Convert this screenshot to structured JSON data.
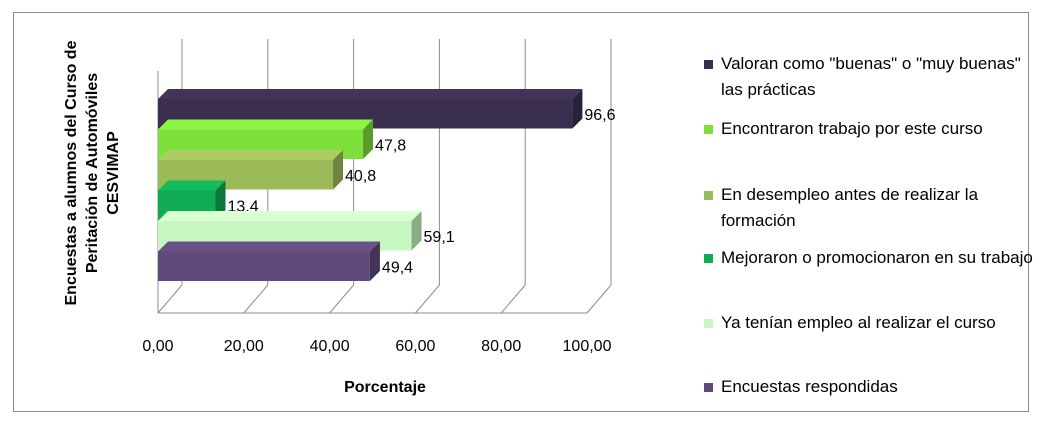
{
  "chart_data": {
    "type": "bar",
    "orientation": "horizontal",
    "style": "3d",
    "xlabel": "Porcentaje",
    "ylabel": "Encuestas a alumnos del Curso de Peritación de Automóviles CESVIMAP",
    "xlim": [
      0,
      100
    ],
    "x_ticks": [
      "0,00",
      "20,00",
      "40,00",
      "60,00",
      "80,00",
      "100,00"
    ],
    "grid": true,
    "legend_position": "right",
    "series": [
      {
        "name": "Valoran como \"buenas\" o \"muy buenas\" las prácticas",
        "value": 96.6,
        "label": "96,6",
        "color": "#3b2f4f"
      },
      {
        "name": "Encontraron trabajo por este curso",
        "value": 47.8,
        "label": "47,8",
        "color": "#7ee03a"
      },
      {
        "name": "En desempleo antes de realizar la formación",
        "value": 40.8,
        "label": "40,8",
        "color": "#9bbb59"
      },
      {
        "name": "Mejoraron o promocionaron en su trabajo",
        "value": 13.4,
        "label": "13,4",
        "color": "#11aa55"
      },
      {
        "name": "Ya tenían empleo al realizar el curso",
        "value": 59.1,
        "label": "59,1",
        "color": "#c6f7c0"
      },
      {
        "name": "Encuestas respondidas",
        "value": 49.4,
        "label": "49,4",
        "color": "#604a7b"
      }
    ]
  }
}
